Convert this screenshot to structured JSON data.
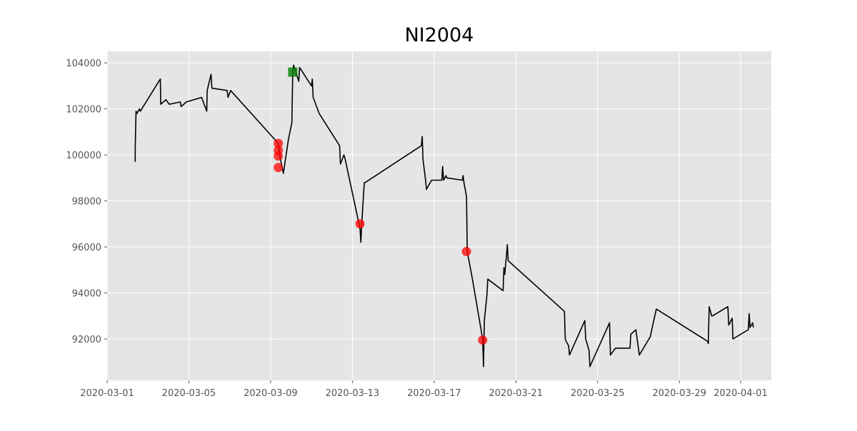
{
  "chart_data": {
    "type": "line",
    "title": "NI2004",
    "xlabel": "",
    "ylabel": "",
    "x_range": [
      "2020-03-01T00:00",
      "2020-04-02T12:00"
    ],
    "ylim": [
      90200,
      104500
    ],
    "y_ticks": [
      92000,
      94000,
      96000,
      98000,
      100000,
      102000,
      104000
    ],
    "x_ticks": [
      "2020-03-01",
      "2020-03-05",
      "2020-03-09",
      "2020-03-13",
      "2020-03-17",
      "2020-03-21",
      "2020-03-25",
      "2020-03-29",
      "2020-04-01"
    ],
    "grid": true,
    "colors": {
      "background": "#e5e5e5",
      "grid": "#ffffff",
      "line": "#000000",
      "sell_marker": "#ff0000",
      "buy_marker": "#008000"
    },
    "series": [
      {
        "style": "line",
        "points": [
          [
            "2020-03-02T09:00",
            99700
          ],
          [
            "2020-03-02T09:05",
            100400
          ],
          [
            "2020-03-02T10:00",
            101900
          ],
          [
            "2020-03-02T11:00",
            101800
          ],
          [
            "2020-03-02T14:00",
            102000
          ],
          [
            "2020-03-02T15:00",
            101900
          ],
          [
            "2020-03-03T14:30",
            103300
          ],
          [
            "2020-03-03T15:00",
            102200
          ],
          [
            "2020-03-03T21:00",
            102400
          ],
          [
            "2020-03-04T01:00",
            102200
          ],
          [
            "2020-03-04T14:00",
            102300
          ],
          [
            "2020-03-04T15:00",
            102100
          ],
          [
            "2020-03-04T21:00",
            102300
          ],
          [
            "2020-03-05T15:00",
            102500
          ],
          [
            "2020-03-05T21:00",
            101900
          ],
          [
            "2020-03-05T21:30",
            102800
          ],
          [
            "2020-03-06T02:00",
            103500
          ],
          [
            "2020-03-06T03:00",
            102900
          ],
          [
            "2020-03-06T21:00",
            102800
          ],
          [
            "2020-03-06T22:00",
            102500
          ],
          [
            "2020-03-07T01:00",
            102800
          ],
          [
            "2020-03-09T09:00",
            100500
          ],
          [
            "2020-03-09T10:00",
            100300
          ],
          [
            "2020-03-09T11:00",
            99900
          ],
          [
            "2020-03-09T14:00",
            99400
          ],
          [
            "2020-03-09T15:00",
            99200
          ],
          [
            "2020-03-09T21:00",
            100700
          ],
          [
            "2020-03-10T01:00",
            101400
          ],
          [
            "2020-03-10T02:00",
            103600
          ],
          [
            "2020-03-10T03:00",
            103900
          ],
          [
            "2020-03-10T09:00",
            103200
          ],
          [
            "2020-03-10T10:00",
            103800
          ],
          [
            "2020-03-11T00:00",
            103000
          ],
          [
            "2020-03-11T01:00",
            103300
          ],
          [
            "2020-03-11T02:00",
            102500
          ],
          [
            "2020-03-11T09:00",
            101800
          ],
          [
            "2020-03-12T09:00",
            100400
          ],
          [
            "2020-03-12T10:00",
            99600
          ],
          [
            "2020-03-12T14:00",
            100000
          ],
          [
            "2020-03-12T15:00",
            99900
          ],
          [
            "2020-03-13T09:00",
            96800
          ],
          [
            "2020-03-13T10:00",
            96200
          ],
          [
            "2020-03-13T11:00",
            97000
          ],
          [
            "2020-03-13T14:00",
            98800
          ],
          [
            "2020-03-13T15:00",
            98800
          ],
          [
            "2020-03-16T09:00",
            100400
          ],
          [
            "2020-03-16T10:00",
            100800
          ],
          [
            "2020-03-16T11:00",
            99800
          ],
          [
            "2020-03-16T14:00",
            98900
          ],
          [
            "2020-03-16T15:00",
            98500
          ],
          [
            "2020-03-16T21:00",
            98900
          ],
          [
            "2020-03-17T09:00",
            98900
          ],
          [
            "2020-03-17T10:00",
            99500
          ],
          [
            "2020-03-17T11:00",
            98900
          ],
          [
            "2020-03-17T14:00",
            99100
          ],
          [
            "2020-03-17T15:00",
            99000
          ],
          [
            "2020-03-18T09:00",
            98900
          ],
          [
            "2020-03-18T10:00",
            99100
          ],
          [
            "2020-03-18T11:00",
            98800
          ],
          [
            "2020-03-18T14:00",
            98200
          ],
          [
            "2020-03-18T15:00",
            95800
          ],
          [
            "2020-03-18T21:00",
            94600
          ],
          [
            "2020-03-19T09:00",
            92000
          ],
          [
            "2020-03-19T10:00",
            90800
          ],
          [
            "2020-03-19T11:00",
            92800
          ],
          [
            "2020-03-19T14:00",
            93900
          ],
          [
            "2020-03-19T15:00",
            94600
          ],
          [
            "2020-03-20T09:00",
            94100
          ],
          [
            "2020-03-20T10:00",
            95100
          ],
          [
            "2020-03-20T11:00",
            94800
          ],
          [
            "2020-03-20T14:00",
            96100
          ],
          [
            "2020-03-20T15:00",
            95400
          ],
          [
            "2020-03-23T09:00",
            93200
          ],
          [
            "2020-03-23T10:00",
            92000
          ],
          [
            "2020-03-23T11:00",
            91900
          ],
          [
            "2020-03-23T14:00",
            91700
          ],
          [
            "2020-03-23T15:00",
            91300
          ],
          [
            "2020-03-24T09:00",
            92800
          ],
          [
            "2020-03-24T10:00",
            92000
          ],
          [
            "2020-03-24T14:00",
            91500
          ],
          [
            "2020-03-24T15:00",
            90800
          ],
          [
            "2020-03-25T14:00",
            92700
          ],
          [
            "2020-03-25T15:00",
            91300
          ],
          [
            "2020-03-25T21:00",
            91600
          ],
          [
            "2020-03-26T14:00",
            91600
          ],
          [
            "2020-03-26T15:00",
            92200
          ],
          [
            "2020-03-26T21:00",
            92400
          ],
          [
            "2020-03-27T01:00",
            91300
          ],
          [
            "2020-03-27T14:00",
            92100
          ],
          [
            "2020-03-27T15:00",
            92300
          ],
          [
            "2020-03-27T21:00",
            93300
          ],
          [
            "2020-03-30T09:00",
            91900
          ],
          [
            "2020-03-30T10:00",
            91800
          ],
          [
            "2020-03-30T11:00",
            93400
          ],
          [
            "2020-03-30T14:00",
            93000
          ],
          [
            "2020-03-30T15:00",
            93000
          ],
          [
            "2020-03-31T09:00",
            93400
          ],
          [
            "2020-03-31T10:00",
            92600
          ],
          [
            "2020-03-31T14:00",
            92900
          ],
          [
            "2020-03-31T15:00",
            92000
          ],
          [
            "2020-04-01T09:00",
            92400
          ],
          [
            "2020-04-01T10:00",
            93100
          ],
          [
            "2020-04-01T11:00",
            92500
          ],
          [
            "2020-04-01T14:00",
            92700
          ],
          [
            "2020-04-01T15:00",
            92500
          ]
        ]
      },
      {
        "style": "marker-circle",
        "color": "#ff0000",
        "points": [
          [
            "2020-03-09T09:00",
            100500
          ],
          [
            "2020-03-09T09:00",
            100200
          ],
          [
            "2020-03-09T09:00",
            99950
          ],
          [
            "2020-03-09T09:00",
            99450
          ],
          [
            "2020-03-13T09:00",
            97000
          ],
          [
            "2020-03-18T14:00",
            95800
          ],
          [
            "2020-03-19T09:00",
            91950
          ]
        ]
      },
      {
        "style": "marker-square",
        "color": "#008000",
        "points": [
          [
            "2020-03-10T02:00",
            103600
          ]
        ]
      }
    ]
  }
}
